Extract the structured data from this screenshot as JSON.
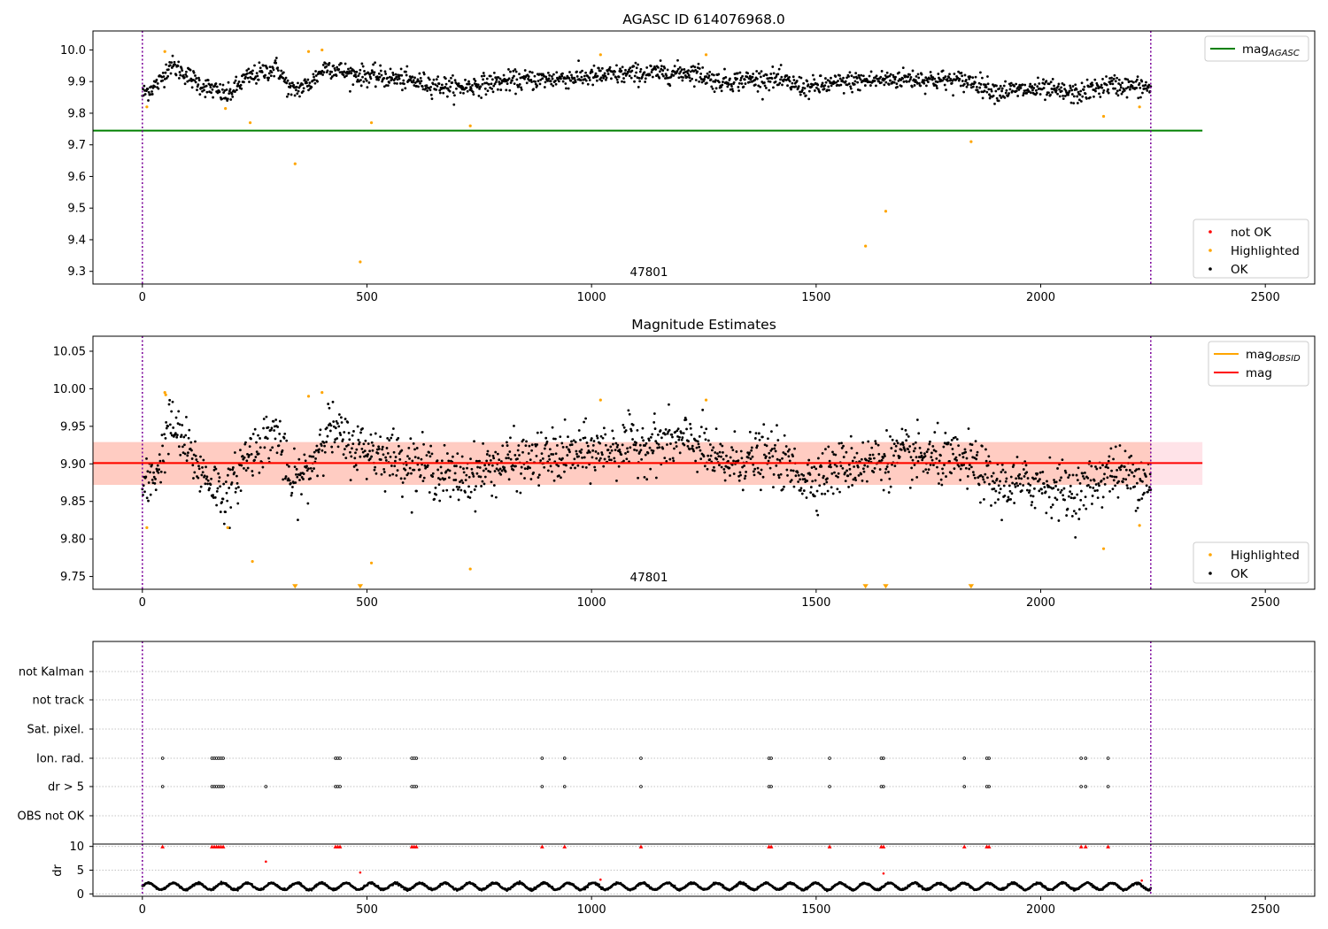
{
  "chart_data": [
    {
      "type": "scatter",
      "title": "AGASC ID 614076968.0",
      "xlabel": "",
      "ylabel": "",
      "xlim": [
        -110,
        2610
      ],
      "ylim": [
        9.26,
        10.06
      ],
      "xticks": [
        0,
        500,
        1000,
        1500,
        2000,
        2500
      ],
      "xtick_labels": [
        "0",
        "500",
        "1000",
        "1500",
        "2000",
        "2500"
      ],
      "yticks": [
        9.3,
        9.4,
        9.5,
        9.6,
        9.7,
        9.8,
        9.9,
        10.0
      ],
      "ytick_labels": [
        "9.3",
        "9.4",
        "9.5",
        "9.6",
        "9.7",
        "9.8",
        "9.9",
        "10.0"
      ],
      "grid": false,
      "vlines": [
        0,
        2245
      ],
      "annotation": {
        "text": "47801",
        "x": 1120,
        "y": 9.3
      },
      "reference_lines": [
        {
          "name": "mag_AGASC",
          "y": 9.745,
          "x_range": [
            -110,
            2360
          ],
          "color": "#008000"
        }
      ],
      "legend_top": {
        "position": "top-right",
        "entries": [
          {
            "label": "mag",
            "sub": "AGASC",
            "color": "#008000",
            "kind": "line"
          }
        ]
      },
      "legend_bottom": {
        "position": "bottom-right",
        "entries": [
          {
            "label": "not OK",
            "color": "#ff0000",
            "kind": "dot"
          },
          {
            "label": "Highlighted",
            "color": "#ffa500",
            "kind": "dot"
          },
          {
            "label": "OK",
            "color": "#000000",
            "kind": "dot"
          }
        ]
      },
      "series": [
        {
          "name": "Highlighted",
          "color": "#ffa500",
          "x": [
            10,
            50,
            185,
            240,
            340,
            370,
            400,
            485,
            510,
            730,
            1020,
            1255,
            1610,
            1655,
            1845,
            2140,
            2220
          ],
          "y": [
            9.82,
            9.995,
            9.815,
            9.77,
            9.64,
            9.995,
            10.0,
            9.33,
            9.77,
            9.76,
            9.985,
            9.985,
            9.38,
            9.49,
            9.71,
            9.79,
            9.82
          ]
        },
        {
          "name": "OK",
          "color": "#000000",
          "x_range": [
            0,
            2245
          ],
          "profile": [
            [
              0,
              9.86
            ],
            [
              40,
              9.9
            ],
            [
              60,
              9.955
            ],
            [
              90,
              9.93
            ],
            [
              130,
              9.89
            ],
            [
              190,
              9.855
            ],
            [
              230,
              9.91
            ],
            [
              300,
              9.945
            ],
            [
              330,
              9.87
            ],
            [
              370,
              9.89
            ],
            [
              410,
              9.95
            ],
            [
              460,
              9.925
            ],
            [
              560,
              9.91
            ],
            [
              700,
              9.88
            ],
            [
              800,
              9.9
            ],
            [
              990,
              9.915
            ],
            [
              1100,
              9.925
            ],
            [
              1230,
              9.93
            ],
            [
              1280,
              9.9
            ],
            [
              1400,
              9.91
            ],
            [
              1480,
              9.88
            ],
            [
              1580,
              9.9
            ],
            [
              1700,
              9.91
            ],
            [
              1850,
              9.9
            ],
            [
              1900,
              9.87
            ],
            [
              2000,
              9.875
            ],
            [
              2080,
              9.86
            ],
            [
              2150,
              9.89
            ],
            [
              2245,
              9.88
            ]
          ],
          "spread": 0.02,
          "n_points": 1700
        }
      ]
    },
    {
      "type": "scatter",
      "title": "Magnitude Estimates",
      "xlabel": "",
      "ylabel": "",
      "xlim": [
        -110,
        2610
      ],
      "ylim": [
        9.733,
        10.07
      ],
      "xticks": [
        0,
        500,
        1000,
        1500,
        2000,
        2500
      ],
      "xtick_labels": [
        "0",
        "500",
        "1000",
        "1500",
        "2000",
        "2500"
      ],
      "yticks": [
        9.75,
        9.8,
        9.85,
        9.9,
        9.95,
        10.0,
        10.05
      ],
      "ytick_labels": [
        "9.75",
        "9.80",
        "9.85",
        "9.90",
        "9.95",
        "10.00",
        "10.05"
      ],
      "grid": false,
      "vlines": [
        0,
        2245
      ],
      "annotation": {
        "text": "47801",
        "x": 1120,
        "y": 9.745
      },
      "bands": [
        {
          "name": "mag_OBSID band",
          "y0": 9.872,
          "y1": 9.929,
          "x_range": [
            -110,
            2245
          ],
          "color": "#ffa07a"
        },
        {
          "name": "mag band",
          "y0": 9.872,
          "y1": 9.929,
          "x_range": [
            -110,
            2360
          ],
          "color": "#ffc0cb"
        }
      ],
      "reference_lines": [
        {
          "name": "mag_OBSID",
          "y": 9.901,
          "x_range": [
            -110,
            2245
          ],
          "color": "#ffa500"
        },
        {
          "name": "mag",
          "y": 9.901,
          "x_range": [
            -110,
            2360
          ],
          "color": "#ff0000"
        }
      ],
      "legend_top": {
        "position": "top-right",
        "entries": [
          {
            "label": "mag",
            "sub": "OBSID",
            "color": "#ffa500",
            "kind": "line"
          },
          {
            "label": "mag",
            "sub": "",
            "color": "#ff0000",
            "kind": "line"
          }
        ]
      },
      "legend_bottom": {
        "position": "bottom-right",
        "entries": [
          {
            "label": "Highlighted",
            "color": "#ffa500",
            "kind": "dot"
          },
          {
            "label": "OK",
            "color": "#000000",
            "kind": "dot"
          }
        ]
      },
      "series": [
        {
          "name": "Highlighted",
          "color": "#ffa500",
          "x": [
            10,
            50,
            52,
            190,
            245,
            370,
            400,
            510,
            730,
            1020,
            1255,
            2140,
            2220
          ],
          "y": [
            9.815,
            9.995,
            9.992,
            9.815,
            9.77,
            9.99,
            9.995,
            9.768,
            9.76,
            9.985,
            9.985,
            9.787,
            9.818
          ]
        },
        {
          "name": "Highlighted (off-scale)",
          "color": "#ffa500",
          "marker": "triangle-down",
          "x": [
            340,
            485,
            1610,
            1655,
            1845
          ],
          "y": [
            9.735,
            9.735,
            9.735,
            9.735,
            9.735
          ]
        },
        {
          "name": "OK",
          "color": "#000000",
          "x_range": [
            0,
            2245
          ],
          "profile": [
            [
              0,
              9.86
            ],
            [
              40,
              9.9
            ],
            [
              60,
              9.955
            ],
            [
              90,
              9.93
            ],
            [
              130,
              9.89
            ],
            [
              190,
              9.855
            ],
            [
              230,
              9.91
            ],
            [
              300,
              9.945
            ],
            [
              330,
              9.87
            ],
            [
              370,
              9.89
            ],
            [
              410,
              9.95
            ],
            [
              460,
              9.925
            ],
            [
              560,
              9.91
            ],
            [
              700,
              9.88
            ],
            [
              800,
              9.9
            ],
            [
              990,
              9.915
            ],
            [
              1100,
              9.925
            ],
            [
              1230,
              9.93
            ],
            [
              1280,
              9.9
            ],
            [
              1400,
              9.91
            ],
            [
              1480,
              9.88
            ],
            [
              1580,
              9.9
            ],
            [
              1700,
              9.91
            ],
            [
              1850,
              9.9
            ],
            [
              1900,
              9.87
            ],
            [
              2000,
              9.875
            ],
            [
              2080,
              9.86
            ],
            [
              2150,
              9.89
            ],
            [
              2245,
              9.88
            ]
          ],
          "spread": 0.022,
          "n_points": 1700
        }
      ]
    },
    {
      "type": "scatter",
      "title": "",
      "xlabel": "",
      "ylabel": "",
      "xlim": [
        -110,
        2610
      ],
      "categories": [
        "not Kalman",
        "not track",
        "Sat. pixel.",
        "Ion. rad.",
        "dr > 5",
        "OBS not OK"
      ],
      "grid": true,
      "vlines": [
        0,
        2245
      ],
      "series": [
        {
          "name": "Ion. rad.",
          "color": "#000000",
          "marker": "open-circle",
          "x": [
            45,
            155,
            160,
            165,
            170,
            175,
            180,
            430,
            435,
            440,
            600,
            605,
            610,
            890,
            940,
            1110,
            1395,
            1400,
            1530,
            1645,
            1650,
            1830,
            1880,
            1885,
            2090,
            2100,
            2150
          ]
        },
        {
          "name": "dr > 5",
          "color": "#000000",
          "marker": "open-circle",
          "x": [
            45,
            155,
            160,
            165,
            170,
            175,
            180,
            275,
            430,
            435,
            440,
            600,
            605,
            610,
            890,
            940,
            1110,
            1395,
            1400,
            1530,
            1645,
            1650,
            1830,
            1880,
            1885,
            2090,
            2100,
            2150
          ]
        }
      ]
    },
    {
      "type": "scatter",
      "title": "",
      "xlabel": "",
      "ylabel": "dr",
      "xlim": [
        -110,
        2610
      ],
      "ylim": [
        -0.5,
        10.5
      ],
      "xticks": [
        0,
        500,
        1000,
        1500,
        2000,
        2500
      ],
      "xtick_labels": [
        "0",
        "500",
        "1000",
        "1500",
        "2000",
        "2500"
      ],
      "yticks": [
        0,
        5,
        10
      ],
      "ytick_labels": [
        "0",
        "5",
        "10"
      ],
      "grid": true,
      "vlines": [
        0,
        2245
      ],
      "series": [
        {
          "name": "dr > 5 (clipped at 10)",
          "color": "#ff0000",
          "marker": "triangle-up",
          "x": [
            45,
            155,
            160,
            165,
            170,
            175,
            180,
            430,
            435,
            440,
            600,
            605,
            610,
            890,
            940,
            1110,
            1395,
            1400,
            1530,
            1645,
            1650,
            1830,
            1880,
            1885,
            2090,
            2100,
            2150
          ],
          "y": [
            10,
            10,
            10,
            10,
            10,
            10,
            10,
            10,
            10,
            10,
            10,
            10,
            10,
            10,
            10,
            10,
            10,
            10,
            10,
            10,
            10,
            10,
            10,
            10,
            10,
            10,
            10
          ]
        },
        {
          "name": "red points",
          "color": "#ff0000",
          "x": [
            275,
            485,
            1020,
            1650,
            2225
          ],
          "y": [
            6.8,
            4.5,
            3.0,
            4.3,
            2.8
          ]
        },
        {
          "name": "dr",
          "color": "#000000",
          "x_range": [
            0,
            2245
          ],
          "mean": 1.6,
          "amplitude": 0.7,
          "period": 55,
          "n_points": 2200
        }
      ]
    }
  ]
}
